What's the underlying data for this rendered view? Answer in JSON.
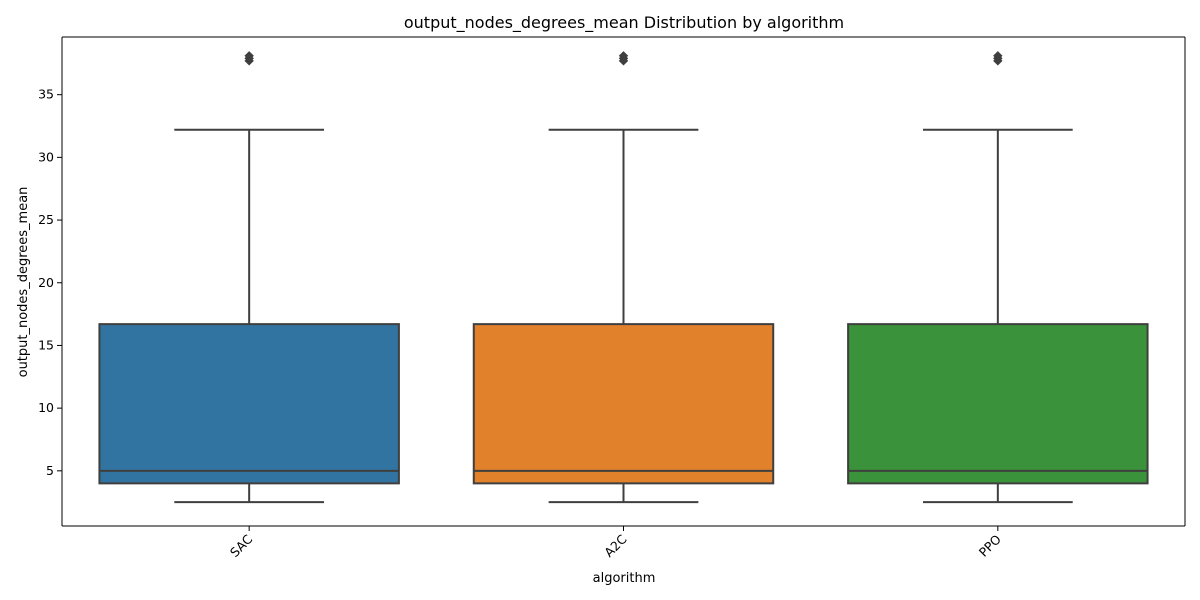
{
  "chart_data": {
    "type": "box",
    "title": "output_nodes_degrees_mean Distribution by algorithm",
    "xlabel": "algorithm",
    "ylabel": "output_nodes_degrees_mean",
    "categories": [
      "SAC",
      "A2C",
      "PPO"
    ],
    "ylim": [
      0.6,
      39.6
    ],
    "yticks": [
      5,
      10,
      15,
      20,
      25,
      30,
      35
    ],
    "grid": false,
    "legend": "none",
    "boxes": [
      {
        "category": "SAC",
        "whisker_low": 2.5,
        "q1": 4.0,
        "median": 5.0,
        "q3": 16.7,
        "whisker_high": 32.2,
        "outliers": [
          37.7,
          37.9,
          38.1
        ],
        "color": "#3274a1"
      },
      {
        "category": "A2C",
        "whisker_low": 2.5,
        "q1": 4.0,
        "median": 5.0,
        "q3": 16.7,
        "whisker_high": 32.2,
        "outliers": [
          37.7,
          37.9,
          38.1
        ],
        "color": "#e1812c"
      },
      {
        "category": "PPO",
        "whisker_low": 2.5,
        "q1": 4.0,
        "median": 5.0,
        "q3": 16.7,
        "whisker_high": 32.2,
        "outliers": [
          37.7,
          37.9,
          38.1
        ],
        "color": "#3a923a"
      }
    ]
  }
}
